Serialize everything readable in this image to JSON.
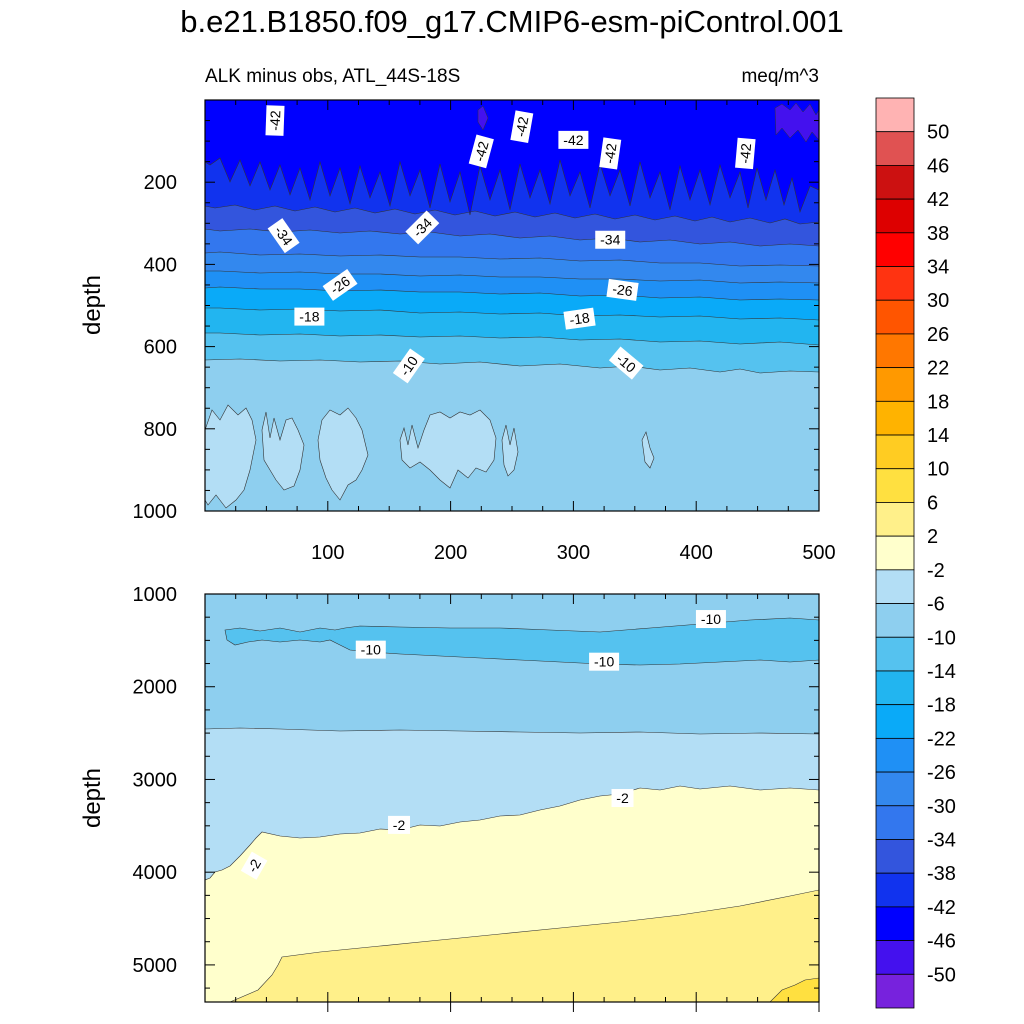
{
  "chart_data": {
    "type": "contour",
    "title": "b.e21.B1850.f09_g17.CMIP6-esm-piControl.001",
    "left_subtitle": "ALK minus obs, ATL_44S-18S",
    "right_subtitle": "meq/m^3",
    "colorbar": {
      "levels": [
        "50",
        "46",
        "42",
        "38",
        "34",
        "30",
        "26",
        "22",
        "18",
        "14",
        "10",
        "6",
        "2",
        "-2",
        "-6",
        "-10",
        "-14",
        "-18",
        "-22",
        "-26",
        "-30",
        "-34",
        "-38",
        "-42",
        "-46",
        "-50"
      ],
      "colors": [
        "#ffb3b3",
        "#e05252",
        "#cc1111",
        "#dd0000",
        "#ff0000",
        "#ff3311",
        "#ff5500",
        "#ff7700",
        "#ff9900",
        "#ffb300",
        "#ffcc22",
        "#ffe040",
        "#fff08a",
        "#ffffcc",
        "#b3def5",
        "#8ecfef",
        "#55c2ef",
        "#22b5f0",
        "#0aaaf8",
        "#1f90f5",
        "#3388ee",
        "#3377ee",
        "#3355dd",
        "#1133ee",
        "#0000ff",
        "#4411ee",
        "#7722dd"
      ]
    },
    "panels": [
      {
        "ylabel": "depth",
        "ylim": [
          0,
          1000
        ],
        "yticks": [
          "200",
          "400",
          "600",
          "800",
          "1000"
        ],
        "xlim": [
          0,
          500
        ],
        "xticks": [
          "100",
          "200",
          "300",
          "400",
          "500"
        ],
        "contour_labels": [
          {
            "text": "-42",
            "x": 57,
            "y": 50,
            "rot": -88
          },
          {
            "text": "-42",
            "x": 225,
            "y": 125,
            "rot": -75
          },
          {
            "text": "-42",
            "x": 258,
            "y": 65,
            "rot": -80
          },
          {
            "text": "-42",
            "x": 300,
            "y": 97,
            "rot": 0
          },
          {
            "text": "-42",
            "x": 330,
            "y": 130,
            "rot": -82
          },
          {
            "text": "-42",
            "x": 440,
            "y": 130,
            "rot": -85
          },
          {
            "text": "-34",
            "x": 64,
            "y": 330,
            "rot": 55
          },
          {
            "text": "-34",
            "x": 177,
            "y": 310,
            "rot": -45
          },
          {
            "text": "-34",
            "x": 330,
            "y": 340,
            "rot": 0
          },
          {
            "text": "-26",
            "x": 110,
            "y": 450,
            "rot": -35
          },
          {
            "text": "-26",
            "x": 340,
            "y": 462,
            "rot": 8
          },
          {
            "text": "-18",
            "x": 85,
            "y": 527,
            "rot": 0
          },
          {
            "text": "-18",
            "x": 305,
            "y": 532,
            "rot": -8
          },
          {
            "text": "-10",
            "x": 166,
            "y": 647,
            "rot": -55
          },
          {
            "text": "-10",
            "x": 343,
            "y": 640,
            "rot": 40
          }
        ]
      },
      {
        "ylabel": "depth",
        "ylim": [
          1000,
          5400
        ],
        "yticks": [
          "1000",
          "2000",
          "3000",
          "4000",
          "5000"
        ],
        "xlim": [
          0,
          500
        ],
        "contour_labels": [
          {
            "text": "-10",
            "x": 412,
            "y": 1270,
            "rot": 0
          },
          {
            "text": "-10",
            "x": 135,
            "y": 1600,
            "rot": 0
          },
          {
            "text": "-10",
            "x": 325,
            "y": 1730,
            "rot": 0
          },
          {
            "text": "-2",
            "x": 340,
            "y": 3200,
            "rot": 0
          },
          {
            "text": "-2",
            "x": 158,
            "y": 3490,
            "rot": 0
          },
          {
            "text": "-2",
            "x": 40,
            "y": 3930,
            "rot": -60
          }
        ]
      }
    ]
  }
}
